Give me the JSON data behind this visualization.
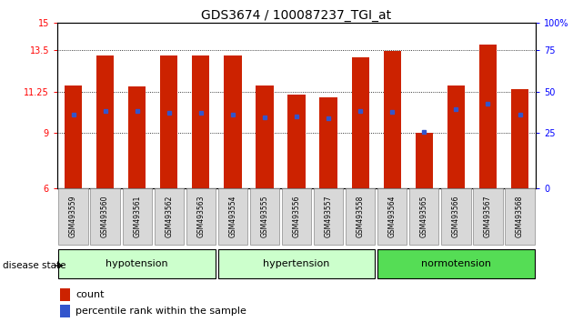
{
  "title": "GDS3674 / 100087237_TGI_at",
  "samples": [
    "GSM493559",
    "GSM493560",
    "GSM493561",
    "GSM493562",
    "GSM493563",
    "GSM493554",
    "GSM493555",
    "GSM493556",
    "GSM493557",
    "GSM493558",
    "GSM493564",
    "GSM493565",
    "GSM493566",
    "GSM493567",
    "GSM493568"
  ],
  "bar_heights": [
    11.6,
    13.2,
    11.55,
    13.2,
    13.2,
    13.2,
    11.6,
    11.1,
    10.95,
    13.1,
    13.45,
    9.0,
    11.6,
    13.8,
    11.4
  ],
  "percentile_values": [
    10.0,
    10.2,
    10.2,
    10.1,
    10.1,
    10.0,
    9.85,
    9.9,
    9.8,
    10.2,
    10.15,
    9.08,
    10.3,
    10.6,
    10.0
  ],
  "group_colors": [
    "#ccffcc",
    "#ccffcc",
    "#55dd55"
  ],
  "group_labels": [
    "hypotension",
    "hypertension",
    "normotension"
  ],
  "group_ranges": [
    [
      0,
      5
    ],
    [
      5,
      10
    ],
    [
      10,
      15
    ]
  ],
  "y_min": 6,
  "y_max": 15,
  "y_ticks_left": [
    6,
    9,
    11.25,
    13.5,
    15
  ],
  "y_tick_labels_left": [
    "6",
    "9",
    "11.25",
    "13.5",
    "15"
  ],
  "y_ticks_right_vals": [
    0,
    25,
    50,
    75,
    100
  ],
  "bar_color": "#cc2200",
  "marker_color": "#3355cc",
  "bar_width": 0.55,
  "disease_state_label": "disease state",
  "legend_count_label": "count",
  "legend_percentile_label": "percentile rank within the sample",
  "background_color": "#ffffff",
  "tick_label_fontsize": 7,
  "title_fontsize": 10
}
